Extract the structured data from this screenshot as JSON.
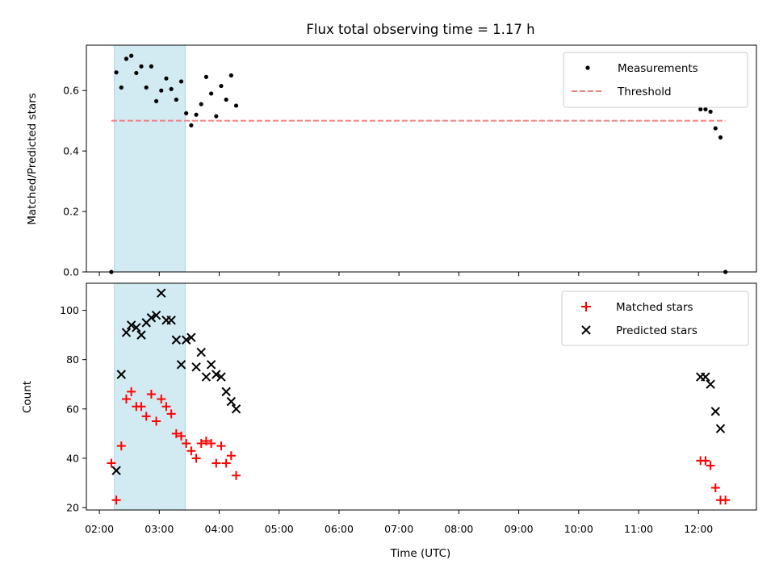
{
  "title": "Flux total observing time = 1.17 h",
  "colors": {
    "measurement": "#000000",
    "threshold": "#f08080",
    "matched": "#ff0000",
    "predicted": "#000000",
    "highlight": "#add8e6"
  },
  "chart_data": [
    {
      "type": "scatter",
      "panel": "top",
      "ylabel": "Matched/Predicted stars",
      "xlim": [
        "01:47",
        "12:58"
      ],
      "ylim": [
        0,
        0.75
      ],
      "yticks": [
        "0.0",
        "0.2",
        "0.4",
        "0.6"
      ],
      "highlight_span": [
        "02:15",
        "03:26"
      ],
      "legend": {
        "position": "top-right",
        "entries": [
          "Measurements",
          "Threshold"
        ]
      },
      "threshold": {
        "name": "Threshold",
        "value": 0.5,
        "x": [
          "02:12",
          "12:27"
        ]
      },
      "series": [
        {
          "name": "Measurements",
          "points": [
            [
              "02:12",
              0.0
            ],
            [
              "02:17",
              0.66
            ],
            [
              "02:22",
              0.61
            ],
            [
              "02:27",
              0.705
            ],
            [
              "02:32",
              0.715
            ],
            [
              "02:37",
              0.658
            ],
            [
              "02:42",
              0.68
            ],
            [
              "02:47",
              0.61
            ],
            [
              "02:52",
              0.68
            ],
            [
              "02:57",
              0.565
            ],
            [
              "03:02",
              0.6
            ],
            [
              "03:07",
              0.64
            ],
            [
              "03:12",
              0.605
            ],
            [
              "03:17",
              0.57
            ],
            [
              "03:22",
              0.63
            ],
            [
              "03:27",
              0.525
            ],
            [
              "03:32",
              0.485
            ],
            [
              "03:37",
              0.52
            ],
            [
              "03:42",
              0.555
            ],
            [
              "03:47",
              0.645
            ],
            [
              "03:52",
              0.59
            ],
            [
              "03:57",
              0.515
            ],
            [
              "04:02",
              0.615
            ],
            [
              "04:07",
              0.57
            ],
            [
              "04:12",
              0.65
            ],
            [
              "04:17",
              0.55
            ],
            [
              "12:02",
              0.538
            ],
            [
              "12:07",
              0.538
            ],
            [
              "12:12",
              0.53
            ],
            [
              "12:17",
              0.475
            ],
            [
              "12:22",
              0.445
            ],
            [
              "12:27",
              0.0
            ]
          ]
        }
      ]
    },
    {
      "type": "scatter",
      "panel": "bottom",
      "xlabel": "Time (UTC)",
      "ylabel": "Count",
      "xlim": [
        "01:47",
        "12:58"
      ],
      "ylim": [
        19,
        111
      ],
      "yticks": [
        "20",
        "40",
        "60",
        "80",
        "100"
      ],
      "xticks": [
        "02:00",
        "03:00",
        "04:00",
        "05:00",
        "06:00",
        "07:00",
        "08:00",
        "09:00",
        "10:00",
        "11:00",
        "12:00"
      ],
      "highlight_span": [
        "02:15",
        "03:26"
      ],
      "legend": {
        "position": "top-right",
        "entries": [
          "Matched stars",
          "Predicted stars"
        ]
      },
      "series": [
        {
          "name": "Matched stars",
          "marker": "plus",
          "points": [
            [
              "02:12",
              38
            ],
            [
              "02:17",
              23
            ],
            [
              "02:22",
              45
            ],
            [
              "02:27",
              64
            ],
            [
              "02:32",
              67
            ],
            [
              "02:37",
              61
            ],
            [
              "02:42",
              61
            ],
            [
              "02:47",
              57
            ],
            [
              "02:52",
              66
            ],
            [
              "02:57",
              55
            ],
            [
              "03:02",
              64
            ],
            [
              "03:07",
              61
            ],
            [
              "03:12",
              58
            ],
            [
              "03:17",
              50
            ],
            [
              "03:22",
              49
            ],
            [
              "03:27",
              46
            ],
            [
              "03:32",
              43
            ],
            [
              "03:37",
              40
            ],
            [
              "03:42",
              46
            ],
            [
              "03:47",
              47
            ],
            [
              "03:52",
              46
            ],
            [
              "03:57",
              38
            ],
            [
              "04:02",
              45
            ],
            [
              "04:07",
              38
            ],
            [
              "04:12",
              41
            ],
            [
              "04:17",
              33
            ],
            [
              "12:02",
              39
            ],
            [
              "12:07",
              39
            ],
            [
              "12:12",
              37
            ],
            [
              "12:17",
              28
            ],
            [
              "12:22",
              23
            ],
            [
              "12:27",
              23
            ]
          ]
        },
        {
          "name": "Predicted stars",
          "marker": "x",
          "points": [
            [
              "02:17",
              35
            ],
            [
              "02:22",
              74
            ],
            [
              "02:27",
              91
            ],
            [
              "02:32",
              94
            ],
            [
              "02:37",
              93
            ],
            [
              "02:42",
              90
            ],
            [
              "02:47",
              95
            ],
            [
              "02:52",
              97
            ],
            [
              "02:57",
              98
            ],
            [
              "03:02",
              107
            ],
            [
              "03:07",
              96
            ],
            [
              "03:12",
              96
            ],
            [
              "03:17",
              88
            ],
            [
              "03:22",
              78
            ],
            [
              "03:27",
              88
            ],
            [
              "03:32",
              89
            ],
            [
              "03:37",
              77
            ],
            [
              "03:42",
              83
            ],
            [
              "03:47",
              73
            ],
            [
              "03:52",
              78
            ],
            [
              "03:57",
              74
            ],
            [
              "04:02",
              73
            ],
            [
              "04:07",
              67
            ],
            [
              "04:12",
              63
            ],
            [
              "04:17",
              60
            ],
            [
              "12:02",
              73
            ],
            [
              "12:07",
              73
            ],
            [
              "12:12",
              70
            ],
            [
              "12:17",
              59
            ],
            [
              "12:22",
              52
            ]
          ]
        }
      ]
    }
  ]
}
